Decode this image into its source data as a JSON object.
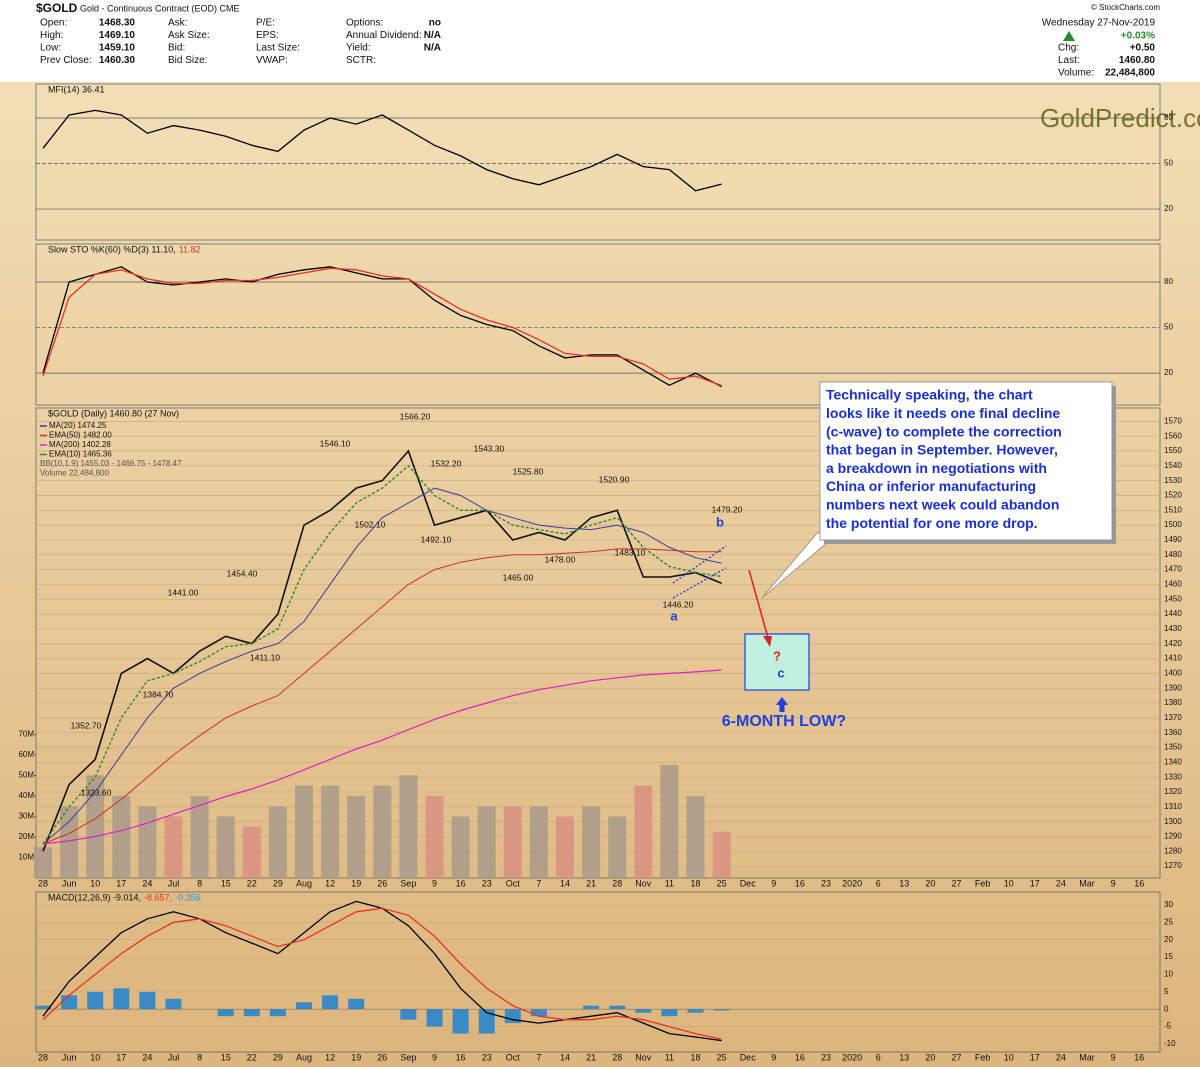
{
  "header": {
    "symbol": "$GOLD",
    "name": "Gold - Continuous Contract (EOD) CME",
    "source": "© StockCharts.com",
    "date": "Wednesday 27-Nov-2019",
    "change_pct": "+0.03%",
    "col1": [
      [
        "Open:",
        "1468.30"
      ],
      [
        "High:",
        "1469.10"
      ],
      [
        "Low:",
        "1459.10"
      ],
      [
        "Prev Close:",
        "1460.30"
      ]
    ],
    "col2": [
      "Ask:",
      "Ask Size:",
      "Bid:",
      "Bid Size:"
    ],
    "col3": [
      "P/E:",
      "EPS:",
      "Last Size:",
      "VWAP:"
    ],
    "col4": [
      [
        "Options:",
        "no"
      ],
      [
        "Annual Dividend:",
        "N/A"
      ],
      [
        "Yield:",
        "N/A"
      ],
      [
        "SCTR:",
        ""
      ]
    ],
    "col5": [
      [
        "Chg:",
        "+0.50"
      ],
      [
        "Last:",
        "1460.80"
      ],
      [
        "Volume:",
        "22,484,800"
      ]
    ]
  },
  "watermark": "GoldPredict.com",
  "chart_data": [
    {
      "type": "line",
      "title": "MFI(14) 36.41",
      "ylim": [
        -0.4,
        102.4
      ],
      "yticks": [
        20,
        50,
        80
      ],
      "grid": true,
      "series": [
        {
          "color": "#000000",
          "values": [
            60,
            82,
            85,
            82,
            70,
            75,
            72,
            68,
            62,
            58,
            72,
            80,
            76,
            82,
            72,
            62,
            55,
            46,
            40,
            36,
            42,
            48,
            56,
            48,
            46,
            32,
            36.41,
            null,
            null,
            null,
            null,
            null,
            null,
            null,
            null,
            null,
            null,
            null,
            null,
            null,
            null,
            null,
            null
          ]
        }
      ]
    },
    {
      "type": "line",
      "title": "Slow STO %K(60) %D(3) 11.10,",
      "title_value": "11.82",
      "ylim": [
        -1,
        105
      ],
      "yticks": [
        20,
        50,
        80
      ],
      "grid": true,
      "series": [
        {
          "color": "#000000",
          "values": [
            20,
            80,
            85,
            90,
            80,
            78,
            80,
            82,
            80,
            85,
            88,
            90,
            86,
            82,
            82,
            68,
            58,
            52,
            48,
            38,
            30,
            32,
            32,
            22,
            12,
            20,
            11.1,
            null,
            null,
            null,
            null,
            null,
            null,
            null,
            null,
            null,
            null,
            null,
            null,
            null,
            null,
            null,
            null
          ]
        },
        {
          "color": "#e8321e",
          "values": [
            18,
            70,
            85,
            88,
            82,
            79,
            79,
            81,
            81,
            83,
            86,
            89,
            88,
            84,
            82,
            72,
            62,
            55,
            50,
            42,
            33,
            31,
            31,
            26,
            16,
            18,
            11.82,
            null,
            null,
            null,
            null,
            null,
            null,
            null,
            null,
            null,
            null,
            null,
            null,
            null,
            null,
            null,
            null
          ]
        }
      ]
    },
    {
      "type": "line",
      "title": "$GOLD (Daily) 1460.80 (27 Nov)",
      "ylim": [
        1262,
        1579
      ],
      "grid": true,
      "yticks": [
        1270,
        1280,
        1290,
        1300,
        1310,
        1320,
        1330,
        1340,
        1350,
        1360,
        1370,
        1380,
        1390,
        1400,
        1410,
        1420,
        1430,
        1440,
        1450,
        1460,
        1470,
        1480,
        1490,
        1500,
        1510,
        1520,
        1530,
        1540,
        1550,
        1560,
        1570
      ],
      "categories": [
        "28",
        "Jun",
        "10",
        "17",
        "24",
        "Jul",
        "8",
        "15",
        "22",
        "29",
        "Aug",
        "12",
        "19",
        "26",
        "Sep",
        "9",
        "16",
        "23",
        "Oct",
        "7",
        "14",
        "21",
        "28",
        "Nov",
        "11",
        "18",
        "25",
        "Dec",
        "9",
        "16",
        "23",
        "2020",
        "6",
        "13",
        "20",
        "27",
        "Feb",
        "10",
        "17",
        "24",
        "Mar",
        "9",
        "16"
      ],
      "series": [
        {
          "color": "#111111",
          "width": 1.6,
          "values": [
            1280,
            1325,
            1342,
            1400,
            1410,
            1400,
            1415,
            1425,
            1420,
            1440,
            1500,
            1510,
            1525,
            1530,
            1550,
            1500,
            1505,
            1510,
            1490,
            1495,
            1490,
            1505,
            1510,
            1465,
            1465,
            1468,
            1460.8,
            null,
            null,
            null,
            null,
            null,
            null,
            null,
            null,
            null,
            null,
            null,
            null,
            null,
            null,
            null,
            null
          ]
        },
        {
          "name": "MA(20) 1474.25",
          "color": "#3b3ba0",
          "width": 1,
          "values": [
            1285,
            1300,
            1320,
            1345,
            1370,
            1390,
            1400,
            1408,
            1415,
            1420,
            1435,
            1460,
            1485,
            1505,
            1515,
            1525,
            1520,
            1510,
            1505,
            1500,
            1498,
            1497,
            1500,
            1495,
            1485,
            1478,
            1474.25,
            null,
            null,
            null,
            null,
            null,
            null,
            null,
            null,
            null,
            null,
            null,
            null,
            null,
            null,
            null,
            null
          ]
        },
        {
          "name": "EMA(50) 1482.00",
          "color": "#c8302a",
          "width": 1,
          "values": [
            1285,
            1292,
            1302,
            1315,
            1330,
            1345,
            1358,
            1370,
            1378,
            1385,
            1400,
            1415,
            1430,
            1445,
            1460,
            1470,
            1475,
            1478,
            1480,
            1480,
            1481,
            1482,
            1484,
            1484,
            1483,
            1482,
            1482,
            null,
            null,
            null,
            null,
            null,
            null,
            null,
            null,
            null,
            null,
            null,
            null,
            null,
            null,
            null,
            null
          ]
        },
        {
          "name": "MA(200) 1402.28",
          "color": "#e020c8",
          "width": 1.2,
          "values": [
            1285,
            1287,
            1290,
            1294,
            1299,
            1305,
            1311,
            1317,
            1322,
            1328,
            1335,
            1342,
            1349,
            1355,
            1362,
            1369,
            1375,
            1380,
            1385,
            1389,
            1392,
            1395,
            1397,
            1399,
            1400,
            1401,
            1402.28,
            null,
            null,
            null,
            null,
            null,
            null,
            null,
            null,
            null,
            null,
            null,
            null,
            null,
            null,
            null,
            null
          ]
        },
        {
          "name": "EMA(10) 1465.36",
          "color": "#2a8a2a",
          "width": 1.4,
          "dash": true,
          "values": [
            1285,
            1310,
            1330,
            1370,
            1395,
            1400,
            1408,
            1418,
            1420,
            1430,
            1470,
            1495,
            1515,
            1525,
            1540,
            1520,
            1510,
            1510,
            1500,
            1497,
            1494,
            1500,
            1505,
            1485,
            1472,
            1468,
            1465.36,
            null,
            null,
            null,
            null,
            null,
            null,
            null,
            null,
            null,
            null,
            null,
            null,
            null,
            null,
            null,
            null
          ]
        }
      ],
      "legend_extra": [
        "BB(10,1.9) 1455.03 - 1466.75 - 1478.47"
      ],
      "volume": {
        "name": "Volume 22,484,800",
        "up_color": "#a89a8a",
        "down_color": "#d89080",
        "y2lim": [
          0,
          229
        ],
        "y2ticks": [
          {
            "value": 10,
            "label": "10M"
          },
          {
            "value": 20,
            "label": "20M"
          },
          {
            "value": 30,
            "label": "30M"
          },
          {
            "value": 40,
            "label": "40M"
          },
          {
            "value": 50,
            "label": "50M"
          },
          {
            "value": 60,
            "label": "60M"
          },
          {
            "value": 70,
            "label": "70M"
          }
        ],
        "values": [
          15,
          35,
          50,
          40,
          35,
          30,
          40,
          30,
          25,
          35,
          45,
          45,
          40,
          45,
          50,
          40,
          30,
          35,
          35,
          35,
          30,
          35,
          30,
          45,
          55,
          40,
          22.48,
          null,
          null,
          null,
          null,
          null,
          null,
          null,
          null,
          null,
          null,
          null,
          null,
          null,
          null,
          null,
          null
        ]
      },
      "price_labels": [
        "1566.20",
        "1546.10",
        "1543.30",
        "1532.20",
        "1525.80",
        "1520.90",
        "1502.10",
        "1492.10",
        "1479.20",
        "1483.10",
        "1478.00",
        "1465.00",
        "1446.20",
        "1454.40",
        "1441.00",
        "1411.10",
        "1384.70",
        "1352.70",
        "1323.60"
      ],
      "wave_labels": [
        "a",
        "b",
        "c",
        "?"
      ],
      "annotation": [
        "Technically speaking, the chart",
        "looks like it needs one final decline",
        "(c-wave) to complete the correction",
        "that began in September. However,",
        "a breakdown in negotiations with",
        "China or inferior manufacturing",
        "numbers next week could abandon",
        "the potential for one more drop."
      ],
      "target_label": "6-MONTH LOW?"
    },
    {
      "type": "macd",
      "title": "MACD(12,26,9) -9.014,",
      "title_signal": "-8.657,",
      "title_hist": "-0.356",
      "ylim": [
        -12.3,
        33.7
      ],
      "yticks": [
        -10,
        -5,
        0,
        5,
        10,
        15,
        20,
        25,
        30
      ],
      "grid": true,
      "categories": [
        "28",
        "Jun",
        "10",
        "17",
        "24",
        "Jul",
        "8",
        "15",
        "22",
        "29",
        "Aug",
        "12",
        "19",
        "26",
        "Sep",
        "9",
        "16",
        "23",
        "Oct",
        "7",
        "14",
        "21",
        "28",
        "Nov",
        "11",
        "18",
        "25",
        "Dec",
        "9",
        "16",
        "23",
        "2020",
        "6",
        "13",
        "20",
        "27",
        "Feb",
        "10",
        "17",
        "24",
        "Mar",
        "9",
        "16"
      ],
      "series": [
        {
          "color": "#000000",
          "values": [
            -2,
            8,
            15,
            22,
            26,
            28,
            26,
            22,
            19,
            16,
            22,
            28,
            31,
            29,
            24,
            16,
            6,
            -1,
            -3,
            -4,
            -3,
            -2,
            -1,
            -4,
            -7,
            -8,
            -9.014,
            null,
            null,
            null,
            null,
            null,
            null,
            null,
            null,
            null,
            null,
            null,
            null,
            null,
            null,
            null,
            null
          ]
        },
        {
          "color": "#e8321e",
          "values": [
            -3,
            4,
            10,
            16,
            21,
            25,
            26,
            24,
            21,
            18,
            20,
            24,
            28,
            29,
            27,
            21,
            13,
            6,
            1,
            -2,
            -3,
            -3,
            -2,
            -3,
            -5,
            -7,
            -8.657,
            null,
            null,
            null,
            null,
            null,
            null,
            null,
            null,
            null,
            null,
            null,
            null,
            null,
            null,
            null,
            null
          ]
        }
      ],
      "histogram": {
        "color": "#3a8ac8",
        "values": [
          1,
          4,
          5,
          6,
          5,
          3,
          0,
          -2,
          -2,
          -2,
          2,
          4,
          3,
          0,
          -3,
          -5,
          -7,
          -7,
          -4,
          -2,
          0,
          1,
          1,
          -1,
          -2,
          -1,
          -0.356,
          null,
          null,
          null,
          null,
          null,
          null,
          null,
          null,
          null,
          null,
          null,
          null,
          null,
          null,
          null,
          null
        ]
      }
    }
  ]
}
